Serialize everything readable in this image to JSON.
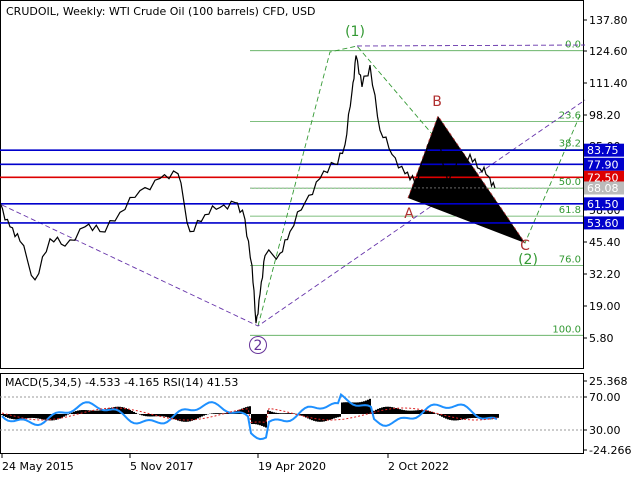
{
  "chart_data": {
    "type": "line",
    "title": "CRUDOIL, Weekly:  WTI Crude Oil (100 barrels) CFD, USD",
    "y_axis": {
      "ticks": [
        "137.80",
        "124.60",
        "111.40",
        "98.20",
        "85.00",
        "71.80",
        "58.60",
        "45.40",
        "32.20",
        "19.00",
        "5.80"
      ],
      "range": [
        0,
        140
      ]
    },
    "x_axis": {
      "ticks": [
        "24 May 2015",
        "5 Nov 2017",
        "19 Apr 2020",
        "2 Oct 2022"
      ]
    },
    "price_levels": [
      {
        "label": "83.75",
        "value": 83.75,
        "color": "#0000cc"
      },
      {
        "label": "77.90",
        "value": 77.9,
        "color": "#0000cc"
      },
      {
        "label": "72.50",
        "value": 72.5,
        "color": "#dd0000"
      },
      {
        "label": "68.08",
        "value": 68.08,
        "color": "#bbbbbb"
      },
      {
        "label": "61.50",
        "value": 61.5,
        "color": "#0000cc"
      },
      {
        "label": "53.60",
        "value": 53.6,
        "color": "#0000cc"
      }
    ],
    "fibonacci": [
      {
        "label": "0.0",
        "value": 125.0
      },
      {
        "label": "23.6",
        "value": 95.6
      },
      {
        "label": "38.2",
        "value": 84.0
      },
      {
        "label": "50.0",
        "value": 68.0
      },
      {
        "label": "61.8",
        "value": 56.4
      },
      {
        "label": "76.0",
        "value": 36.0
      },
      {
        "label": "100.0",
        "value": 7.0
      }
    ],
    "wave_labels": [
      {
        "text": "(1)",
        "color": "#339933"
      },
      {
        "text": "(2)",
        "color": "#339933"
      },
      {
        "text": "2",
        "color": "#663399"
      },
      {
        "text": "A",
        "color": "#b03030"
      },
      {
        "text": "B",
        "color": "#b03030"
      },
      {
        "text": "C",
        "color": "#b03030"
      }
    ],
    "price_series": [
      {
        "x": 0,
        "y": 62
      },
      {
        "x": 10,
        "y": 52
      },
      {
        "x": 20,
        "y": 46
      },
      {
        "x": 35,
        "y": 30
      },
      {
        "x": 50,
        "y": 47
      },
      {
        "x": 65,
        "y": 44
      },
      {
        "x": 85,
        "y": 52
      },
      {
        "x": 100,
        "y": 50
      },
      {
        "x": 120,
        "y": 58
      },
      {
        "x": 140,
        "y": 67
      },
      {
        "x": 160,
        "y": 72
      },
      {
        "x": 178,
        "y": 74
      },
      {
        "x": 190,
        "y": 50
      },
      {
        "x": 205,
        "y": 57
      },
      {
        "x": 220,
        "y": 60
      },
      {
        "x": 235,
        "y": 62
      },
      {
        "x": 245,
        "y": 55
      },
      {
        "x": 252,
        "y": 36
      },
      {
        "x": 256,
        "y": 12
      },
      {
        "x": 260,
        "y": 24
      },
      {
        "x": 265,
        "y": 40
      },
      {
        "x": 280,
        "y": 41
      },
      {
        "x": 290,
        "y": 50
      },
      {
        "x": 305,
        "y": 62
      },
      {
        "x": 320,
        "y": 72
      },
      {
        "x": 335,
        "y": 78
      },
      {
        "x": 345,
        "y": 86
      },
      {
        "x": 352,
        "y": 108
      },
      {
        "x": 356,
        "y": 123
      },
      {
        "x": 362,
        "y": 110
      },
      {
        "x": 370,
        "y": 119
      },
      {
        "x": 380,
        "y": 92
      },
      {
        "x": 392,
        "y": 82
      },
      {
        "x": 405,
        "y": 74
      },
      {
        "x": 415,
        "y": 70
      },
      {
        "x": 428,
        "y": 86
      },
      {
        "x": 438,
        "y": 90
      },
      {
        "x": 448,
        "y": 70
      },
      {
        "x": 460,
        "y": 80
      },
      {
        "x": 470,
        "y": 82
      },
      {
        "x": 480,
        "y": 76
      },
      {
        "x": 488,
        "y": 73
      },
      {
        "x": 495,
        "y": 68
      }
    ],
    "indicator": {
      "label": "MACD(5,34,5) -4.533 -4.165 RSI(14) 41.53",
      "ticks": [
        "25.368",
        "70.00",
        "30.00",
        "-24.266"
      ]
    }
  }
}
